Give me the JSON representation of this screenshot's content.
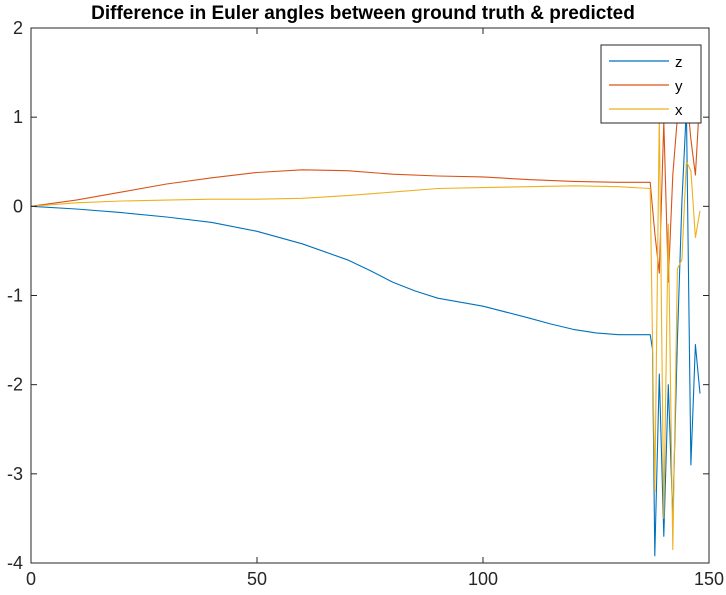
{
  "chart_data": {
    "type": "line",
    "title": "Difference in Euler angles between ground truth & predicted",
    "xlabel": "",
    "ylabel": "",
    "xlim": [
      0,
      150
    ],
    "ylim": [
      -4,
      2
    ],
    "xticks": [
      0,
      50,
      100,
      150
    ],
    "yticks": [
      -4,
      -3,
      -2,
      -1,
      0,
      1,
      2
    ],
    "grid": false,
    "legend_position": "top-right",
    "series": [
      {
        "name": "z",
        "color": "#0072BD",
        "points": [
          [
            0,
            0
          ],
          [
            10,
            -0.03
          ],
          [
            20,
            -0.07
          ],
          [
            30,
            -0.12
          ],
          [
            40,
            -0.18
          ],
          [
            50,
            -0.28
          ],
          [
            60,
            -0.42
          ],
          [
            70,
            -0.6
          ],
          [
            75,
            -0.72
          ],
          [
            80,
            -0.85
          ],
          [
            85,
            -0.95
          ],
          [
            90,
            -1.03
          ],
          [
            100,
            -1.12
          ],
          [
            110,
            -1.25
          ],
          [
            115,
            -1.32
          ],
          [
            120,
            -1.38
          ],
          [
            125,
            -1.42
          ],
          [
            130,
            -1.44
          ],
          [
            137,
            -1.44
          ],
          [
            137.5,
            -1.6
          ],
          [
            138,
            -3.92
          ],
          [
            139,
            -1.88
          ],
          [
            140,
            -3.7
          ],
          [
            141,
            -2.0
          ],
          [
            142,
            -3.5
          ],
          [
            143,
            -1.5
          ],
          [
            144,
            0.05
          ],
          [
            145,
            1.1
          ],
          [
            146,
            -2.9
          ],
          [
            147,
            -1.55
          ],
          [
            148,
            -2.1
          ]
        ]
      },
      {
        "name": "y",
        "color": "#D95319",
        "points": [
          [
            0,
            0
          ],
          [
            10,
            0.07
          ],
          [
            20,
            0.16
          ],
          [
            30,
            0.25
          ],
          [
            40,
            0.32
          ],
          [
            50,
            0.38
          ],
          [
            60,
            0.41
          ],
          [
            70,
            0.4
          ],
          [
            80,
            0.36
          ],
          [
            90,
            0.34
          ],
          [
            100,
            0.33
          ],
          [
            110,
            0.3
          ],
          [
            120,
            0.28
          ],
          [
            130,
            0.27
          ],
          [
            137,
            0.27
          ],
          [
            138,
            -0.3
          ],
          [
            139,
            -0.75
          ],
          [
            140,
            0.95
          ],
          [
            141,
            -0.85
          ],
          [
            142,
            0.35
          ],
          [
            143,
            1.0
          ],
          [
            144,
            1.05
          ],
          [
            145,
            1.3
          ],
          [
            146,
            0.75
          ],
          [
            147,
            0.35
          ],
          [
            148,
            1.27
          ]
        ]
      },
      {
        "name": "x",
        "color": "#EDB120",
        "points": [
          [
            0,
            0
          ],
          [
            10,
            0.04
          ],
          [
            20,
            0.06
          ],
          [
            30,
            0.07
          ],
          [
            40,
            0.08
          ],
          [
            50,
            0.08
          ],
          [
            60,
            0.09
          ],
          [
            70,
            0.12
          ],
          [
            80,
            0.16
          ],
          [
            90,
            0.2
          ],
          [
            100,
            0.21
          ],
          [
            110,
            0.22
          ],
          [
            120,
            0.23
          ],
          [
            130,
            0.22
          ],
          [
            137,
            0.2
          ],
          [
            138,
            -3.2
          ],
          [
            139,
            1.0
          ],
          [
            140,
            -3.5
          ],
          [
            141,
            -0.2
          ],
          [
            142,
            -3.85
          ],
          [
            143,
            -0.7
          ],
          [
            144,
            -0.6
          ],
          [
            145,
            0.5
          ],
          [
            146,
            0.4
          ],
          [
            147,
            -0.35
          ],
          [
            148,
            -0.05
          ]
        ]
      }
    ]
  }
}
